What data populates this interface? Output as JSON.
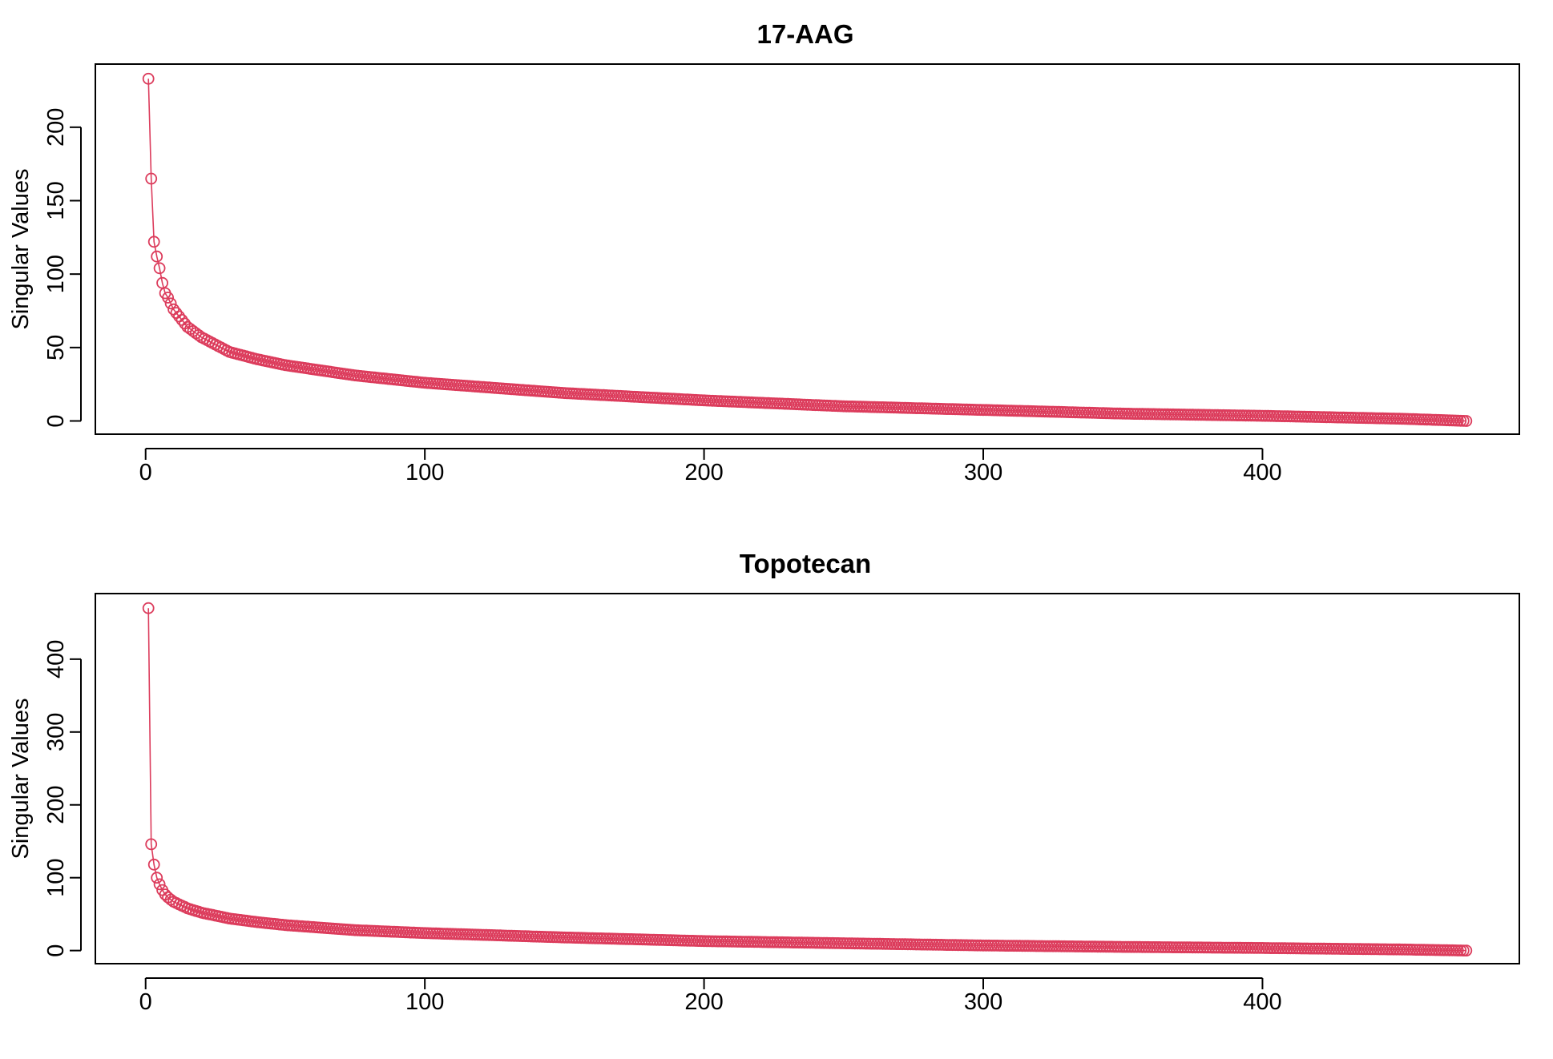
{
  "colors": {
    "series": "#DC3C5C",
    "axis": "#000000",
    "background": "#FFFFFF"
  },
  "chart_data": [
    {
      "type": "scatter",
      "title": "17-AAG",
      "xlabel": "",
      "ylabel": "Singular Values",
      "xlim": [
        -18,
        492
      ],
      "ylim": [
        -9,
        243
      ],
      "xticks": [
        0,
        100,
        200,
        300,
        400
      ],
      "yticks": [
        0,
        50,
        100,
        150,
        200
      ],
      "grid": false,
      "legend": "none",
      "n_points": 473,
      "marker": "open-circle",
      "x": "index 1..473",
      "key_values": [
        {
          "x": 1,
          "y": 233
        },
        {
          "x": 2,
          "y": 165
        },
        {
          "x": 3,
          "y": 122
        },
        {
          "x": 4,
          "y": 112
        },
        {
          "x": 5,
          "y": 104
        },
        {
          "x": 6,
          "y": 94
        },
        {
          "x": 7,
          "y": 87
        },
        {
          "x": 8,
          "y": 84
        },
        {
          "x": 9,
          "y": 80
        },
        {
          "x": 10,
          "y": 76
        },
        {
          "x": 15,
          "y": 64
        },
        {
          "x": 20,
          "y": 57
        },
        {
          "x": 30,
          "y": 47
        },
        {
          "x": 40,
          "y": 42
        },
        {
          "x": 50,
          "y": 38
        },
        {
          "x": 75,
          "y": 31
        },
        {
          "x": 100,
          "y": 26
        },
        {
          "x": 150,
          "y": 19
        },
        {
          "x": 200,
          "y": 14
        },
        {
          "x": 250,
          "y": 10
        },
        {
          "x": 300,
          "y": 7.5
        },
        {
          "x": 350,
          "y": 5
        },
        {
          "x": 400,
          "y": 3.5
        },
        {
          "x": 450,
          "y": 1.5
        },
        {
          "x": 473,
          "y": 0
        }
      ]
    },
    {
      "type": "scatter",
      "title": "Topotecan",
      "xlabel": "",
      "ylabel": "Singular Values",
      "xlim": [
        -18,
        492
      ],
      "ylim": [
        -18,
        490
      ],
      "xticks": [
        0,
        100,
        200,
        300,
        400
      ],
      "yticks": [
        0,
        100,
        200,
        300,
        400
      ],
      "grid": false,
      "legend": "none",
      "n_points": 473,
      "marker": "open-circle",
      "x": "index 1..473",
      "key_values": [
        {
          "x": 1,
          "y": 470
        },
        {
          "x": 2,
          "y": 146
        },
        {
          "x": 3,
          "y": 118
        },
        {
          "x": 4,
          "y": 100
        },
        {
          "x": 5,
          "y": 91
        },
        {
          "x": 6,
          "y": 83
        },
        {
          "x": 7,
          "y": 77
        },
        {
          "x": 8,
          "y": 73
        },
        {
          "x": 9,
          "y": 70
        },
        {
          "x": 10,
          "y": 67
        },
        {
          "x": 15,
          "y": 58
        },
        {
          "x": 20,
          "y": 52
        },
        {
          "x": 30,
          "y": 44
        },
        {
          "x": 40,
          "y": 39
        },
        {
          "x": 50,
          "y": 35
        },
        {
          "x": 75,
          "y": 28
        },
        {
          "x": 100,
          "y": 24
        },
        {
          "x": 150,
          "y": 18
        },
        {
          "x": 200,
          "y": 13
        },
        {
          "x": 250,
          "y": 10
        },
        {
          "x": 300,
          "y": 7
        },
        {
          "x": 350,
          "y": 5
        },
        {
          "x": 400,
          "y": 3.5
        },
        {
          "x": 450,
          "y": 1.5
        },
        {
          "x": 473,
          "y": 0
        }
      ]
    }
  ]
}
